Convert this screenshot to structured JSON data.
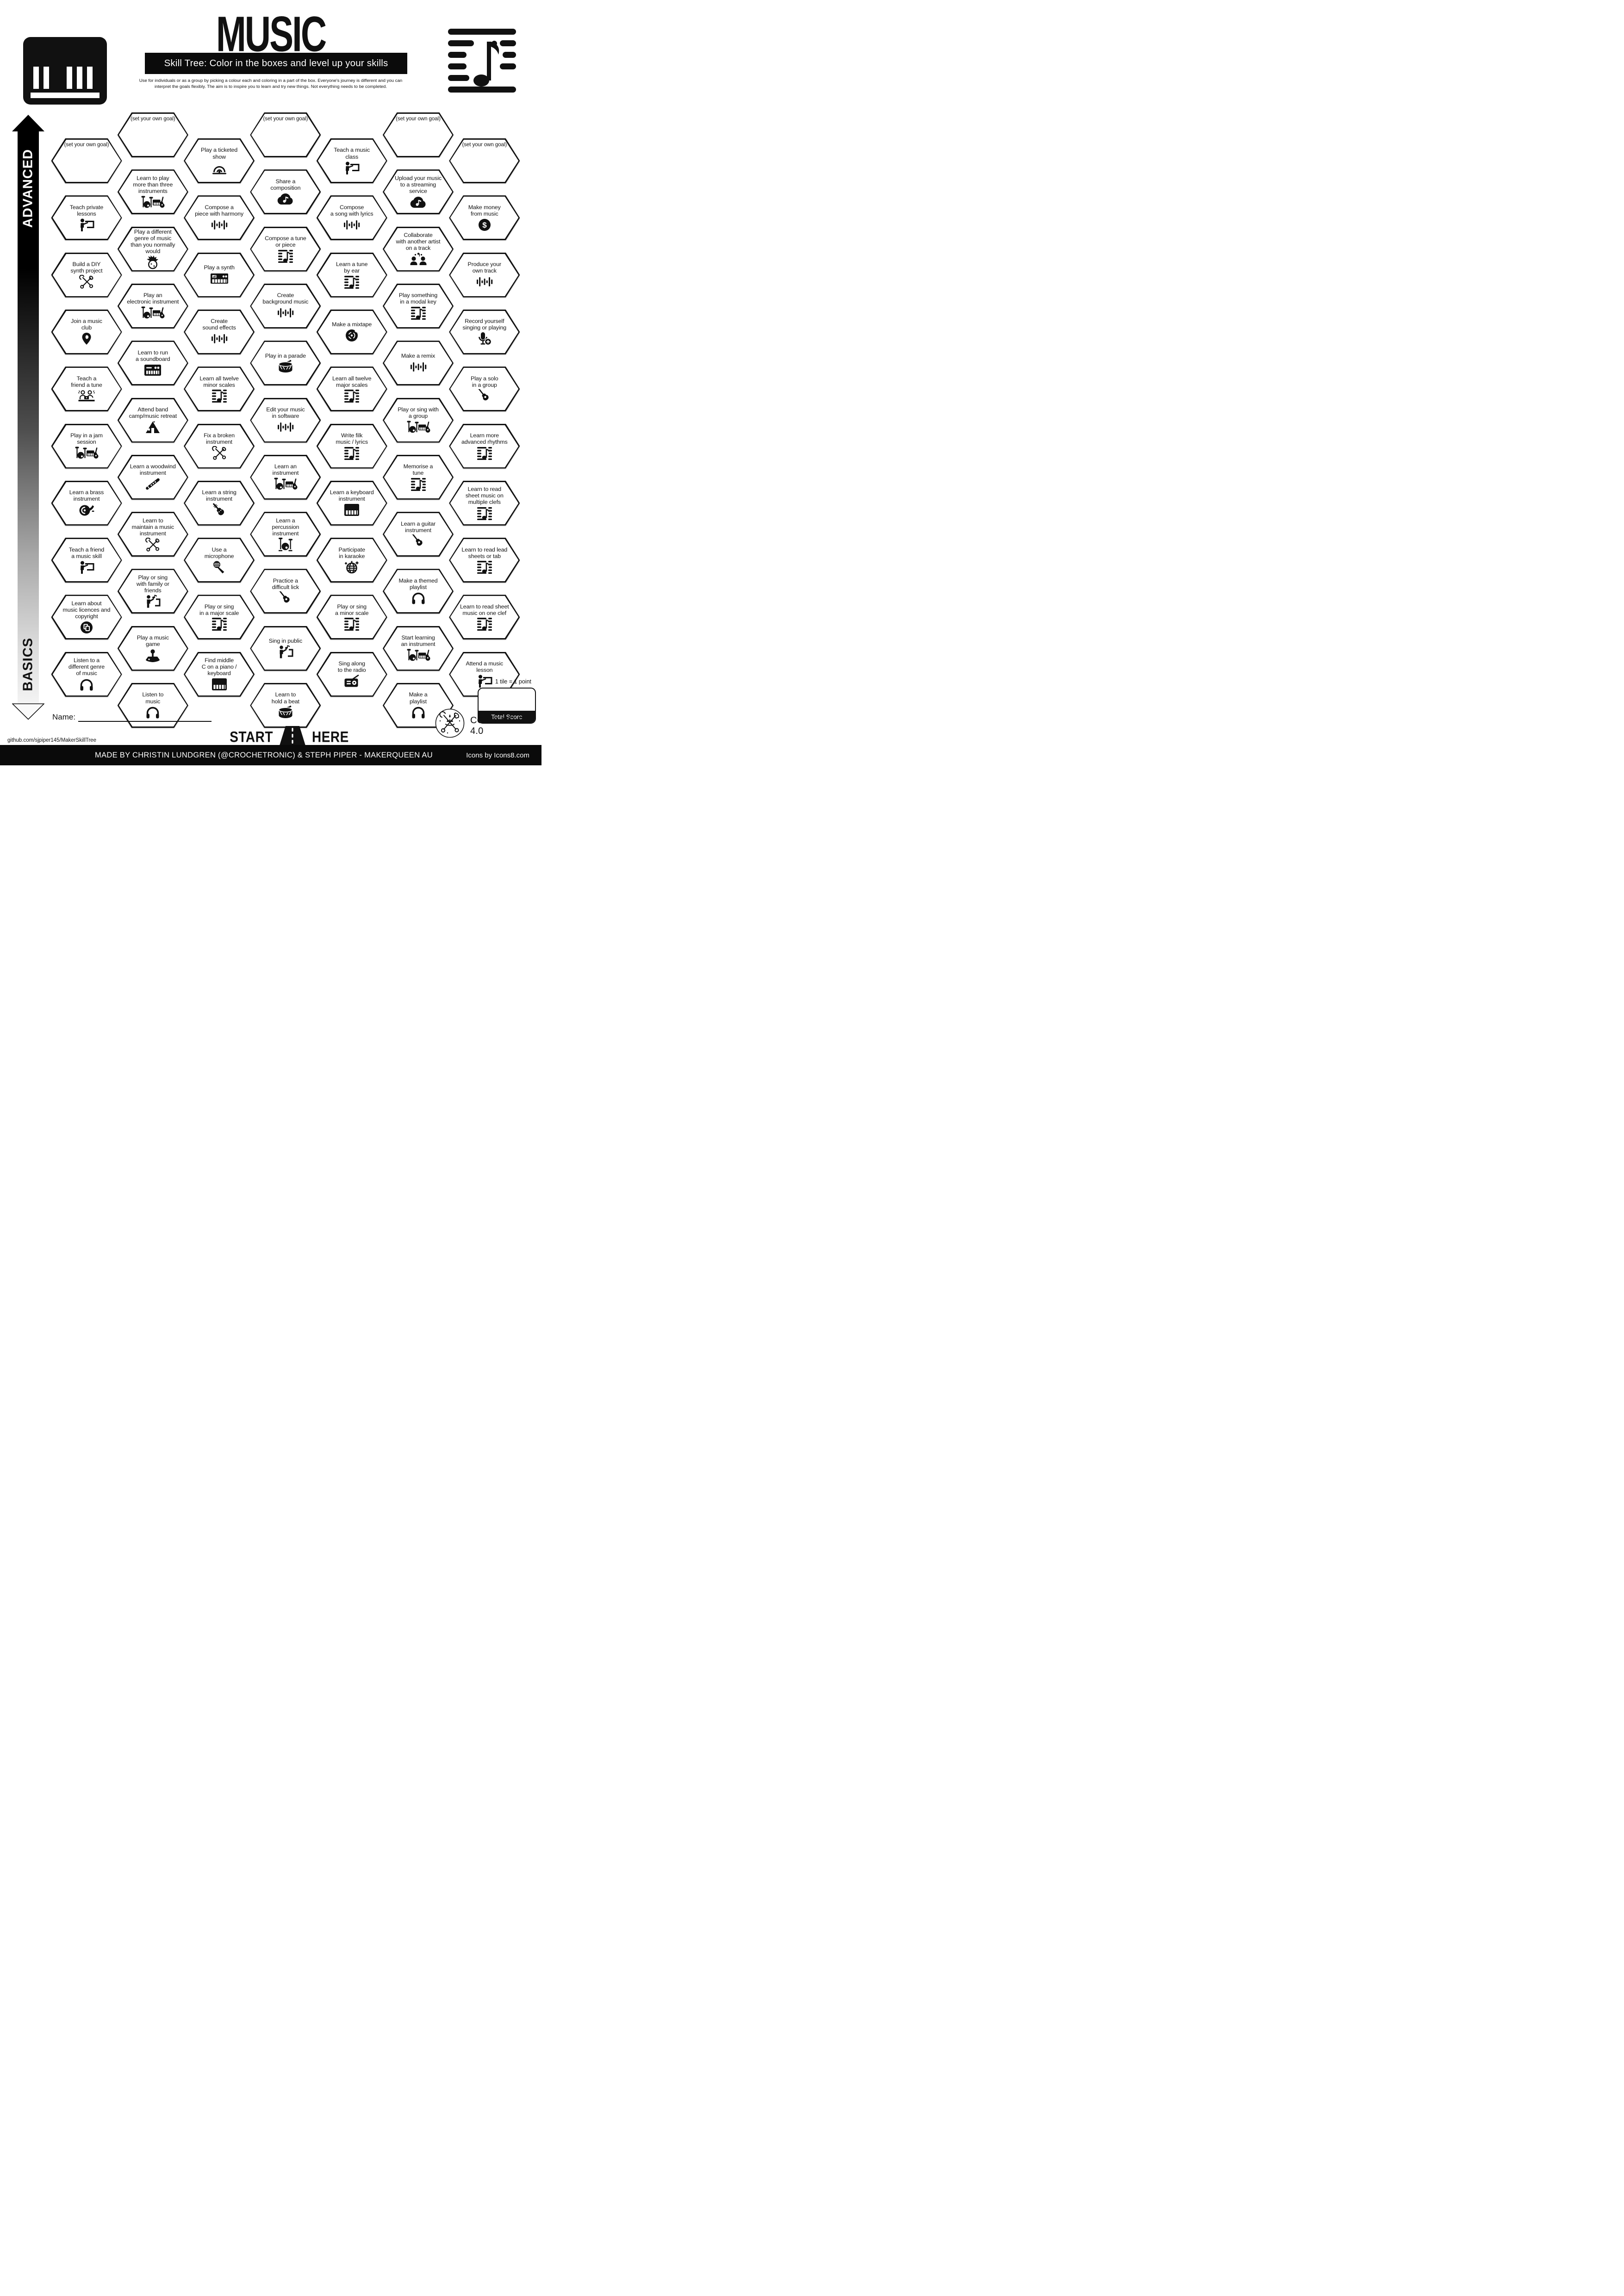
{
  "header": {
    "title": "MUSIC",
    "subtitle": "Skill Tree:  Color in the boxes and level up your skills",
    "description": "Use for individuals or as a group by picking a colour each and coloring in a part of the box.  Everyone's journey is different and you can\ninterpret the goals flexibly.  The aim is to inspire you to learn and try new things. Not everything needs to be completed.",
    "left_icon": "piano-keyboard-icon",
    "right_icon": "music-note-bars-icon"
  },
  "axis": {
    "top_label": "ADVANCED",
    "bottom_label": "BASICS"
  },
  "start": {
    "left": "START",
    "right": "HERE",
    "icon": "road-icon"
  },
  "score": {
    "tile_note": "1 tile = 1 point",
    "total_label": "Total Score"
  },
  "footer": {
    "name_label": "Name:",
    "url": "github.com/sjpiper145/MakerSkillTree",
    "license": "CC BY-NC-SA 4.0",
    "credit": "MADE BY CHRISTIN LUNDGREN (@CROCHETRONIC) & STEPH PIPER  -  MAKERQUEEN AU",
    "icons_credit": "Icons by Icons8.com",
    "logo_icon": "maker-crown-tools-icon"
  },
  "goal_label": "(set your own goal)",
  "hexes": [
    {
      "col": 1,
      "row": 0,
      "label": "(set your own goal)",
      "icon": null
    },
    {
      "col": 1,
      "row": 1,
      "label": "Teach private\nlessons",
      "icon": "teacher-icon"
    },
    {
      "col": 1,
      "row": 2,
      "label": "Build a DIY\nsynth project",
      "icon": "tools-icon"
    },
    {
      "col": 1,
      "row": 3,
      "label": "Join a music\nclub",
      "icon": "location-pin-icon"
    },
    {
      "col": 1,
      "row": 4,
      "label": "Teach a\nfriend a tune",
      "icon": "friends-laptop-icon"
    },
    {
      "col": 1,
      "row": 5,
      "label": "Play in a jam\nsession",
      "icon": "band-icon"
    },
    {
      "col": 1,
      "row": 6,
      "label": "Learn a brass\ninstrument",
      "icon": "french-horn-icon"
    },
    {
      "col": 1,
      "row": 7,
      "label": "Teach a friend\na music skill",
      "icon": "teacher-icon"
    },
    {
      "col": 1,
      "row": 8,
      "label": "Learn about\nmusic licences and\ncopyright",
      "icon": "copyright-icon"
    },
    {
      "col": 1,
      "row": 9,
      "label": "Listen to a\ndifferent genre\nof music",
      "icon": "headphones-icon"
    },
    {
      "col": 2,
      "row": 0,
      "label": "(set your own goal)",
      "icon": null
    },
    {
      "col": 2,
      "row": 1,
      "label": "Learn to play\nmore than three\ninstruments",
      "icon": "band-icon"
    },
    {
      "col": 2,
      "row": 2,
      "label": "Play a different\ngenre of music\nthan you normally would",
      "icon": "mohawk-icon"
    },
    {
      "col": 2,
      "row": 3,
      "label": "Play an\nelectronic instrument",
      "icon": "band-icon"
    },
    {
      "col": 2,
      "row": 4,
      "label": "Learn to run\na soundboard",
      "icon": "soundboard-icon"
    },
    {
      "col": 2,
      "row": 5,
      "label": "Attend band\ncamp/music retreat",
      "icon": "tent-icon"
    },
    {
      "col": 2,
      "row": 6,
      "label": "Learn a woodwind\ninstrument",
      "icon": "flute-icon"
    },
    {
      "col": 2,
      "row": 7,
      "label": "Learn to\nmaintain a music\ninstrument",
      "icon": "tools-icon"
    },
    {
      "col": 2,
      "row": 8,
      "label": "Play or sing\nwith family or\nfriends",
      "icon": "sing-icon"
    },
    {
      "col": 2,
      "row": 9,
      "label": "Play a music\ngame",
      "icon": "joystick-icon"
    },
    {
      "col": 2,
      "row": 10,
      "label": "Listen to\nmusic",
      "icon": "headphones-icon"
    },
    {
      "col": 3,
      "row": 0,
      "label": "Play a ticketed\nshow",
      "icon": "stage-icon"
    },
    {
      "col": 3,
      "row": 1,
      "label": "Compose a\npiece with harmony",
      "icon": "waveform-icon"
    },
    {
      "col": 3,
      "row": 2,
      "label": "Play a synth",
      "icon": "synth-icon"
    },
    {
      "col": 3,
      "row": 3,
      "label": "Create\nsound effects",
      "icon": "waveform-icon"
    },
    {
      "col": 3,
      "row": 4,
      "label": "Learn all twelve\nminor scales",
      "icon": "sheet-music-icon"
    },
    {
      "col": 3,
      "row": 5,
      "label": "Fix a broken\ninstrument",
      "icon": "tools-icon"
    },
    {
      "col": 3,
      "row": 6,
      "label": "Learn a string\ninstrument",
      "icon": "violin-icon"
    },
    {
      "col": 3,
      "row": 7,
      "label": "Use a\nmicrophone",
      "icon": "microphone-icon"
    },
    {
      "col": 3,
      "row": 8,
      "label": "Play or sing\nin a major scale",
      "icon": "sheet-music-icon"
    },
    {
      "col": 3,
      "row": 9,
      "label": "Find middle\nC on a piano /\nkeyboard",
      "icon": "piano-icon"
    },
    {
      "col": 4,
      "row": 0,
      "label": "(set your own goal)",
      "icon": null
    },
    {
      "col": 4,
      "row": 1,
      "label": "Share a\ncomposition",
      "icon": "cloud-note-icon"
    },
    {
      "col": 4,
      "row": 2,
      "label": "Compose a tune\nor piece",
      "icon": "sheet-music-icon"
    },
    {
      "col": 4,
      "row": 3,
      "label": "Create\nbackground music",
      "icon": "waveform-icon"
    },
    {
      "col": 4,
      "row": 4,
      "label": "Play in a parade",
      "icon": "drum-icon"
    },
    {
      "col": 4,
      "row": 5,
      "label": "Edit your music\nin software",
      "icon": "waveform-icon"
    },
    {
      "col": 4,
      "row": 6,
      "label": "Learn an\ninstrument",
      "icon": "band-icon"
    },
    {
      "col": 4,
      "row": 7,
      "label": "Learn a\npercussion\ninstrument",
      "icon": "drum-kit-icon"
    },
    {
      "col": 4,
      "row": 8,
      "label": "Practice a\ndifficult lick",
      "icon": "guitar-icon"
    },
    {
      "col": 4,
      "row": 9,
      "label": "Sing in public",
      "icon": "sing-icon"
    },
    {
      "col": 4,
      "row": 10,
      "label": "Learn to\nhold a beat",
      "icon": "drum-icon"
    },
    {
      "col": 5,
      "row": 0,
      "label": "Teach a music\nclass",
      "icon": "teacher-icon"
    },
    {
      "col": 5,
      "row": 1,
      "label": "Compose\na song with lyrics",
      "icon": "waveform-icon"
    },
    {
      "col": 5,
      "row": 2,
      "label": "Learn a tune\nby ear",
      "icon": "sheet-music-icon"
    },
    {
      "col": 5,
      "row": 3,
      "label": "Make a mixtape",
      "icon": "vinyl-icon"
    },
    {
      "col": 5,
      "row": 4,
      "label": "Learn all twelve\nmajor scales",
      "icon": "sheet-music-icon"
    },
    {
      "col": 5,
      "row": 5,
      "label": "Write filk\nmusic / lyrics",
      "icon": "sheet-music-icon"
    },
    {
      "col": 5,
      "row": 6,
      "label": "Learn a keyboard\ninstrument",
      "icon": "piano-icon"
    },
    {
      "col": 5,
      "row": 7,
      "label": "Participate\nin karaoke",
      "icon": "disco-ball-icon"
    },
    {
      "col": 5,
      "row": 8,
      "label": "Play or sing\na minor scale",
      "icon": "sheet-music-icon"
    },
    {
      "col": 5,
      "row": 9,
      "label": "Sing along\nto the radio",
      "icon": "radio-icon"
    },
    {
      "col": 6,
      "row": 0,
      "label": "(set your own goal)",
      "icon": null
    },
    {
      "col": 6,
      "row": 1,
      "label": "Upload your music\nto a streaming\nservice",
      "icon": "cloud-note-icon"
    },
    {
      "col": 6,
      "row": 2,
      "label": "Collaborate\nwith another artist\non a track",
      "icon": "collaborate-icon"
    },
    {
      "col": 6,
      "row": 3,
      "label": "Play something\nin a modal key",
      "icon": "sheet-music-icon"
    },
    {
      "col": 6,
      "row": 4,
      "label": "Make a remix",
      "icon": "waveform-icon"
    },
    {
      "col": 6,
      "row": 5,
      "label": "Play or sing with\na group",
      "icon": "band-icon"
    },
    {
      "col": 6,
      "row": 6,
      "label": "Memorise a\ntune",
      "icon": "sheet-music-icon"
    },
    {
      "col": 6,
      "row": 7,
      "label": "Learn a guitar\ninstrument",
      "icon": "guitar-icon"
    },
    {
      "col": 6,
      "row": 8,
      "label": "Make a themed\nplaylist",
      "icon": "headphones-icon"
    },
    {
      "col": 6,
      "row": 9,
      "label": "Start learning\nan instrument",
      "icon": "band-icon"
    },
    {
      "col": 6,
      "row": 10,
      "label": "Make a\nplaylist",
      "icon": "headphones-icon"
    },
    {
      "col": 7,
      "row": 0,
      "label": "(set your own goal)",
      "icon": null
    },
    {
      "col": 7,
      "row": 1,
      "label": "Make money\nfrom music",
      "icon": "dollar-icon"
    },
    {
      "col": 7,
      "row": 2,
      "label": "Produce your\nown track",
      "icon": "waveform-icon"
    },
    {
      "col": 7,
      "row": 3,
      "label": "Record yourself\nsinging or playing",
      "icon": "mic-plus-icon"
    },
    {
      "col": 7,
      "row": 4,
      "label": "Play a solo\nin a group",
      "icon": "guitar-icon"
    },
    {
      "col": 7,
      "row": 5,
      "label": "Learn more\nadvanced rhythms",
      "icon": "sheet-music-icon"
    },
    {
      "col": 7,
      "row": 6,
      "label": "Learn to read\nsheet music on\nmultiple clefs",
      "icon": "sheet-music-icon"
    },
    {
      "col": 7,
      "row": 7,
      "label": "Learn to read lead\nsheets or tab",
      "icon": "sheet-music-icon"
    },
    {
      "col": 7,
      "row": 8,
      "label": "Learn to read sheet\nmusic on one clef",
      "icon": "sheet-music-icon"
    },
    {
      "col": 7,
      "row": 9,
      "label": "Attend a music\nlesson",
      "icon": "teacher-icon"
    }
  ]
}
